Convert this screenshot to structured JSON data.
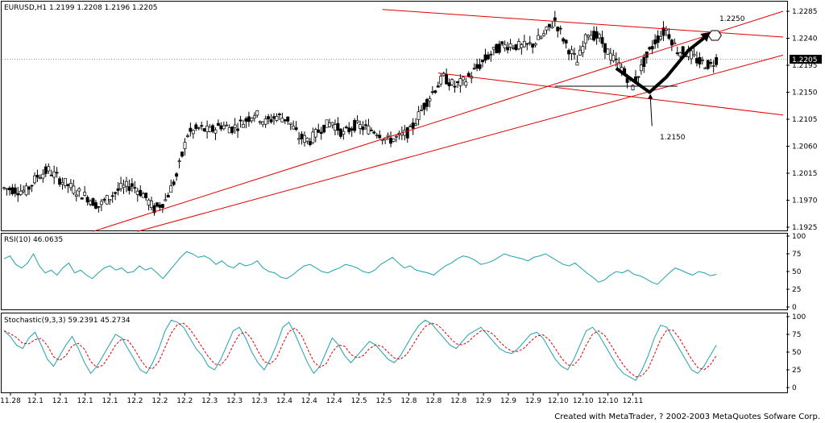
{
  "window": {
    "credit": "Created with MetaTrader, ? 2002-2003 MetaQuotes Sofware Corp."
  },
  "colors": {
    "background": "#ffffff",
    "candle": "#000000",
    "trendline": "#e00000",
    "rsi": "#20a0b0",
    "stoch_main": "#20a0b0",
    "stoch_signal": "#e00000",
    "current_price_bg": "#000000",
    "current_price_fg": "#ffffff"
  },
  "chart_data": [
    {
      "type": "candlestick",
      "title": "EURUSD,H1  1.2199 1.2208 1.2196 1.2205",
      "symbol": "EURUSD,H1",
      "ohlc_header": {
        "open": 1.2199,
        "high": 1.2208,
        "low": 1.2196,
        "close": 1.2205
      },
      "current_price_label": "1.2205",
      "ylim": [
        1.1925,
        1.2285
      ],
      "yticks": [
        "1.2285",
        "1.2240",
        "1.2195",
        "1.2150",
        "1.2105",
        "1.2060",
        "1.2015",
        "1.1970",
        "1.1925"
      ],
      "close_path": [
        [
          0,
          1.199
        ],
        [
          4,
          1.1985
        ],
        [
          6,
          1.201
        ],
        [
          8,
          1.202
        ],
        [
          10,
          1.2005
        ],
        [
          13,
          1.1985
        ],
        [
          15,
          1.1975
        ],
        [
          17,
          1.196
        ],
        [
          19,
          1.1975
        ],
        [
          21,
          1.199
        ],
        [
          23,
          1.1995
        ],
        [
          25,
          1.198
        ],
        [
          27,
          1.1955
        ],
        [
          29,
          1.197
        ],
        [
          31,
          1.201
        ],
        [
          33,
          1.208
        ],
        [
          35,
          1.209
        ],
        [
          37,
          1.2085
        ],
        [
          39,
          1.2095
        ],
        [
          41,
          1.209
        ],
        [
          43,
          1.21
        ],
        [
          45,
          1.2115
        ],
        [
          47,
          1.21
        ],
        [
          49,
          1.211
        ],
        [
          51,
          1.2105
        ],
        [
          53,
          1.2075
        ],
        [
          55,
          1.207
        ],
        [
          57,
          1.209
        ],
        [
          59,
          1.21
        ],
        [
          61,
          1.208
        ],
        [
          63,
          1.2095
        ],
        [
          65,
          1.209
        ],
        [
          67,
          1.2085
        ],
        [
          69,
          1.207
        ],
        [
          71,
          1.2075
        ],
        [
          73,
          1.2085
        ],
        [
          75,
          1.212
        ],
        [
          77,
          1.215
        ],
        [
          79,
          1.2175
        ],
        [
          81,
          1.216
        ],
        [
          83,
          1.217
        ],
        [
          85,
          1.219
        ],
        [
          87,
          1.221
        ],
        [
          89,
          1.2225
        ],
        [
          91,
          1.223
        ],
        [
          93,
          1.2225
        ],
        [
          95,
          1.223
        ],
        [
          97,
          1.2245
        ],
        [
          99,
          1.227
        ],
        [
          101,
          1.223
        ],
        [
          103,
          1.22
        ],
        [
          105,
          1.225
        ],
        [
          107,
          1.224
        ],
        [
          109,
          1.221
        ],
        [
          111,
          1.219
        ],
        [
          113,
          1.216
        ],
        [
          115,
          1.22
        ],
        [
          117,
          1.2235
        ],
        [
          119,
          1.2255
        ],
        [
          121,
          1.222
        ],
        [
          123,
          1.2215
        ],
        [
          125,
          1.22
        ],
        [
          127,
          1.2195
        ],
        [
          128,
          1.2205
        ]
      ],
      "x_tick_labels": [
        "11.28",
        "12.1",
        "12.1",
        "12.1",
        "12.1",
        "12.2",
        "12.2",
        "12.2",
        "12.3",
        "12.3",
        "12.3",
        "12.4",
        "12.4",
        "12.4",
        "12.5",
        "12.5",
        "12.8",
        "12.8",
        "12.8",
        "12.9",
        "12.9",
        "12.9",
        "12.10",
        "12.10",
        "12.10",
        "12.11"
      ],
      "annotations": [
        {
          "text": "1.2250",
          "price": 1.225,
          "kind": "target"
        },
        {
          "text": "1.2150",
          "price": 1.215,
          "kind": "support"
        }
      ],
      "trendlines": [
        {
          "name": "upper-channel-top",
          "from": [
            68,
            1.2288
          ],
          "to": [
            140,
            1.2242
          ]
        },
        {
          "name": "lower-channel-top",
          "from": [
            78,
            1.2182
          ],
          "to": [
            140,
            1.2112
          ]
        },
        {
          "name": "rising-line-1",
          "from": [
            16,
            1.1918
          ],
          "to": [
            140,
            1.2285
          ]
        },
        {
          "name": "rising-line-2",
          "from": [
            24,
            1.1918
          ],
          "to": [
            140,
            1.2212
          ]
        },
        {
          "name": "support-horizontal",
          "from": [
            99,
            1.216
          ],
          "to": [
            121,
            1.216
          ]
        }
      ],
      "projection_path": [
        [
          110,
          1.219
        ],
        [
          113,
          1.217
        ],
        [
          116,
          1.215
        ],
        [
          119,
          1.2175
        ],
        [
          123,
          1.222
        ],
        [
          126,
          1.2242
        ]
      ]
    },
    {
      "type": "line",
      "title": "RSI(10)  46.0635",
      "name": "RSI(10)",
      "value_label": "46.0635",
      "ylim": [
        0,
        100
      ],
      "yticks": [
        "100",
        "75",
        "50",
        "25",
        "0"
      ],
      "values": [
        68,
        72,
        60,
        55,
        62,
        75,
        58,
        48,
        52,
        45,
        55,
        62,
        48,
        52,
        45,
        40,
        48,
        55,
        58,
        52,
        55,
        48,
        50,
        58,
        52,
        55,
        48,
        40,
        50,
        60,
        70,
        78,
        75,
        70,
        72,
        68,
        60,
        65,
        58,
        55,
        62,
        58,
        60,
        65,
        55,
        50,
        48,
        42,
        40,
        45,
        52,
        58,
        60,
        55,
        50,
        48,
        52,
        55,
        60,
        58,
        55,
        50,
        48,
        52,
        60,
        65,
        70,
        62,
        55,
        58,
        52,
        50,
        48,
        45,
        52,
        58,
        62,
        68,
        72,
        70,
        66,
        60,
        62,
        65,
        70,
        75,
        72,
        70,
        68,
        65,
        70,
        72,
        75,
        70,
        65,
        60,
        58,
        62,
        55,
        48,
        42,
        35,
        38,
        45,
        50,
        48,
        52,
        46,
        44,
        40,
        35,
        32,
        40,
        48,
        55,
        52,
        48,
        45,
        50,
        48,
        44,
        46
      ]
    },
    {
      "type": "line",
      "title": "Stochastic(9,3,3)  59.2391  45.2734",
      "name": "Stochastic(9,3,3)",
      "value_labels": [
        "59.2391",
        "45.2734"
      ],
      "ylim": [
        0,
        100
      ],
      "yticks": [
        "100",
        "75",
        "50",
        "25",
        "0"
      ],
      "main": [
        80,
        72,
        60,
        55,
        70,
        78,
        60,
        40,
        30,
        45,
        60,
        72,
        55,
        35,
        20,
        30,
        45,
        60,
        75,
        70,
        55,
        40,
        25,
        20,
        35,
        55,
        80,
        95,
        92,
        85,
        70,
        55,
        45,
        30,
        25,
        40,
        60,
        80,
        85,
        70,
        50,
        35,
        25,
        40,
        60,
        85,
        92,
        75,
        55,
        35,
        20,
        30,
        50,
        70,
        60,
        45,
        35,
        45,
        55,
        65,
        60,
        50,
        40,
        35,
        45,
        60,
        75,
        88,
        95,
        90,
        80,
        70,
        60,
        55,
        65,
        75,
        80,
        85,
        75,
        65,
        55,
        50,
        48,
        55,
        65,
        75,
        78,
        70,
        55,
        40,
        30,
        25,
        40,
        60,
        80,
        85,
        75,
        60,
        45,
        30,
        20,
        15,
        10,
        25,
        45,
        70,
        88,
        85,
        70,
        55,
        40,
        25,
        20,
        30,
        45,
        60
      ]
    }
  ]
}
